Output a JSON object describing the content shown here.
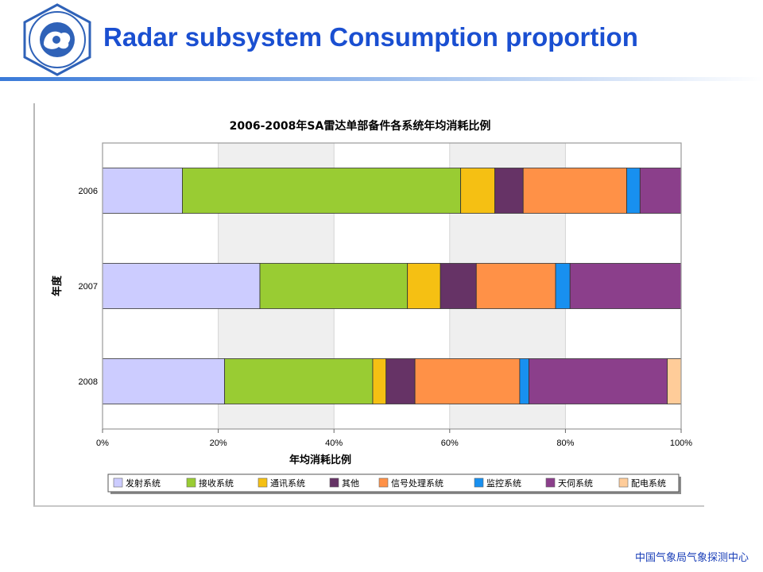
{
  "slide": {
    "title": "Radar subsystem Consumption proportion",
    "footer": "中国气象局气象探测中心",
    "logo_name": "cma-emblem",
    "accent_color": "#1a4fd1"
  },
  "chart_data": {
    "type": "bar",
    "orientation": "horizontal",
    "stacked": true,
    "title": "2006-2008年SA雷达单部备件各系统年均消耗比例",
    "xlabel": "年均消耗比例",
    "ylabel": "年度",
    "categories": [
      "2006",
      "2007",
      "2008"
    ],
    "xlim": [
      0,
      100
    ],
    "xticks": [
      "0%",
      "20%",
      "40%",
      "60%",
      "80%",
      "100%"
    ],
    "grid": true,
    "legend_position": "bottom",
    "series": [
      {
        "name": "发射系统",
        "color": "#ccccff",
        "values": [
          13.8,
          27.2,
          21.1
        ]
      },
      {
        "name": "接收系统",
        "color": "#99cc33",
        "values": [
          48.1,
          25.5,
          25.6
        ]
      },
      {
        "name": "通讯系统",
        "color": "#f5c013",
        "values": [
          5.9,
          5.7,
          2.3
        ]
      },
      {
        "name": "其他",
        "color": "#663366",
        "values": [
          4.9,
          6.2,
          5.0
        ]
      },
      {
        "name": "信号处理系统",
        "color": "#ff9147",
        "values": [
          17.9,
          13.7,
          18.1
        ]
      },
      {
        "name": "监控系统",
        "color": "#1890f0",
        "values": [
          2.3,
          2.5,
          1.6
        ]
      },
      {
        "name": "天伺系统",
        "color": "#8b3f8b",
        "values": [
          7.1,
          19.2,
          23.9
        ]
      },
      {
        "name": "配电系统",
        "color": "#ffcc99",
        "values": [
          0,
          0,
          2.4
        ]
      }
    ]
  }
}
